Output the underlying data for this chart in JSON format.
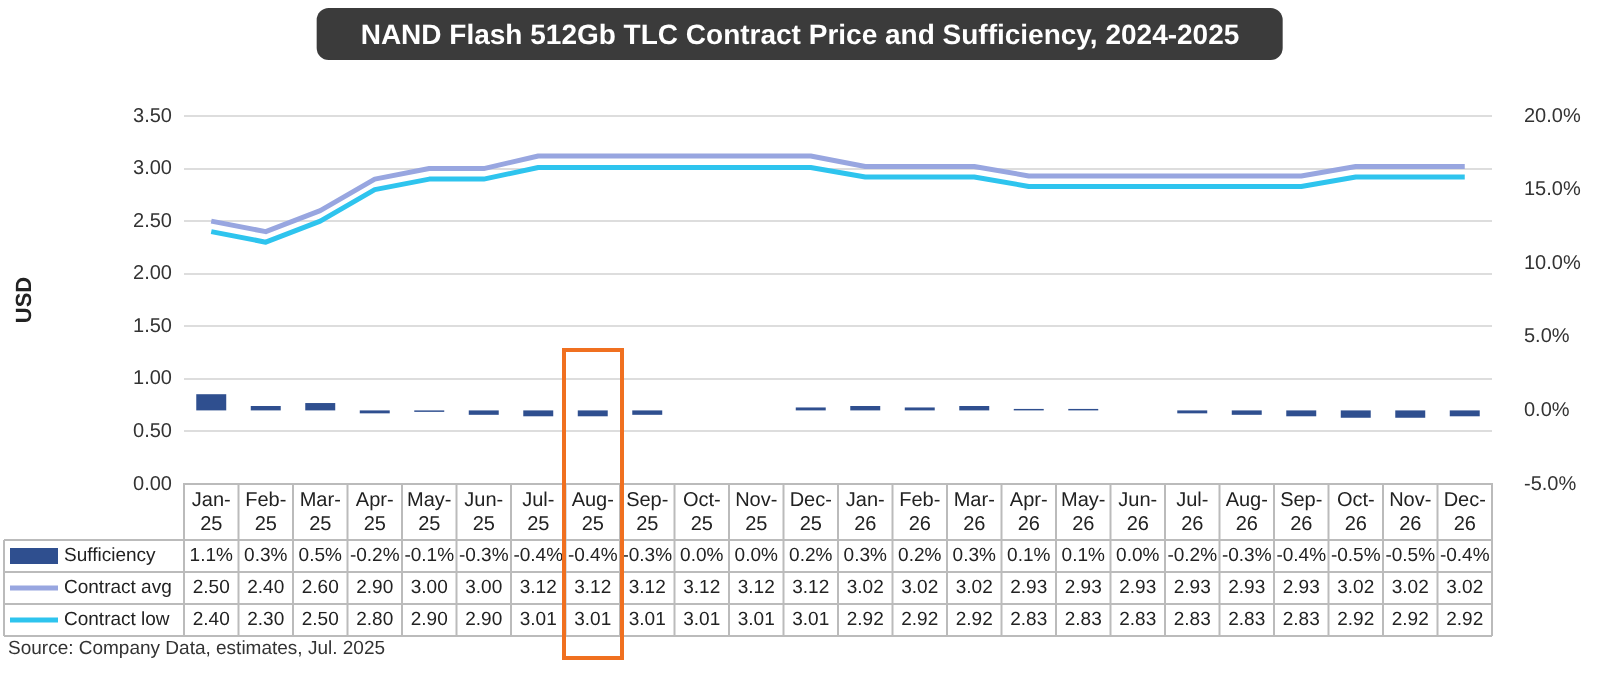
{
  "chart_data": {
    "type": "bar",
    "title": "NAND Flash 512Gb TLC Contract Price and Sufficiency, 2024-2025",
    "ylabel": "USD",
    "categories": [
      "Jan-25",
      "Feb-25",
      "Mar-25",
      "Apr-25",
      "May-25",
      "Jun-25",
      "Jul-25",
      "Aug-25",
      "Sep-25",
      "Oct-25",
      "Nov-25",
      "Dec-25",
      "Jan-26",
      "Feb-26",
      "Mar-26",
      "Apr-26",
      "May-26",
      "Jun-26",
      "Jul-26",
      "Aug-26",
      "Sep-26",
      "Oct-26",
      "Nov-26",
      "Dec-26"
    ],
    "series": [
      {
        "name": "Sufficiency",
        "axis": "y2",
        "color": "#2f4f8f",
        "values": [
          1.1,
          0.3,
          0.5,
          -0.2,
          -0.1,
          -0.3,
          -0.4,
          -0.4,
          -0.3,
          0.0,
          0.0,
          0.2,
          0.3,
          0.2,
          0.3,
          0.1,
          0.1,
          0.0,
          -0.2,
          -0.3,
          -0.4,
          -0.5,
          -0.5,
          -0.4
        ],
        "value_labels": [
          "1.1%",
          "0.3%",
          "0.5%",
          "-0.2%",
          "-0.1%",
          "-0.3%",
          "-0.4%",
          "-0.4%",
          "-0.3%",
          "0.0%",
          "0.0%",
          "0.2%",
          "0.3%",
          "0.2%",
          "0.3%",
          "0.1%",
          "0.1%",
          "0.0%",
          "-0.2%",
          "-0.3%",
          "-0.4%",
          "-0.5%",
          "-0.5%",
          "-0.4%"
        ]
      },
      {
        "name": "Contract avg",
        "type": "line",
        "color": "#98a6e0",
        "values": [
          2.5,
          2.4,
          2.6,
          2.9,
          3.0,
          3.0,
          3.12,
          3.12,
          3.12,
          3.12,
          3.12,
          3.12,
          3.02,
          3.02,
          3.02,
          2.93,
          2.93,
          2.93,
          2.93,
          2.93,
          2.93,
          3.02,
          3.02,
          3.02
        ],
        "value_labels": [
          "2.50",
          "2.40",
          "2.60",
          "2.90",
          "3.00",
          "3.00",
          "3.12",
          "3.12",
          "3.12",
          "3.12",
          "3.12",
          "3.12",
          "3.02",
          "3.02",
          "3.02",
          "2.93",
          "2.93",
          "2.93",
          "2.93",
          "2.93",
          "2.93",
          "3.02",
          "3.02",
          "3.02"
        ]
      },
      {
        "name": "Contract low",
        "type": "line",
        "color": "#2ec4ee",
        "values": [
          2.4,
          2.3,
          2.5,
          2.8,
          2.9,
          2.9,
          3.01,
          3.01,
          3.01,
          3.01,
          3.01,
          3.01,
          2.92,
          2.92,
          2.92,
          2.83,
          2.83,
          2.83,
          2.83,
          2.83,
          2.83,
          2.92,
          2.92,
          2.92
        ],
        "value_labels": [
          "2.40",
          "2.30",
          "2.50",
          "2.80",
          "2.90",
          "2.90",
          "3.01",
          "3.01",
          "3.01",
          "3.01",
          "3.01",
          "3.01",
          "2.92",
          "2.92",
          "2.92",
          "2.83",
          "2.83",
          "2.83",
          "2.83",
          "2.83",
          "2.83",
          "2.92",
          "2.92",
          "2.92"
        ]
      }
    ],
    "ylim": [
      0,
      3.5
    ],
    "yticks": [
      {
        "value": 0,
        "label": "0.00"
      },
      {
        "value": 0.5,
        "label": "0.50"
      },
      {
        "value": 1,
        "label": "1.00"
      },
      {
        "value": 1.5,
        "label": "1.50"
      },
      {
        "value": 2,
        "label": "2.00"
      },
      {
        "value": 2.5,
        "label": "2.50"
      },
      {
        "value": 3,
        "label": "3.00"
      },
      {
        "value": 3.5,
        "label": "3.50"
      }
    ],
    "y2lim": [
      -5,
      20
    ],
    "y2ticks": [
      {
        "value": -5,
        "label": "-5.0%"
      },
      {
        "value": 0,
        "label": "0.0%"
      },
      {
        "value": 5,
        "label": "5.0%"
      },
      {
        "value": 10,
        "label": "10.0%"
      },
      {
        "value": 15,
        "label": "15.0%"
      },
      {
        "value": 20,
        "label": "20.0%"
      }
    ],
    "grid": "y",
    "legend": "bottom",
    "annotations": [
      "Source: Company Data, estimates, Jul. 2025"
    ]
  }
}
